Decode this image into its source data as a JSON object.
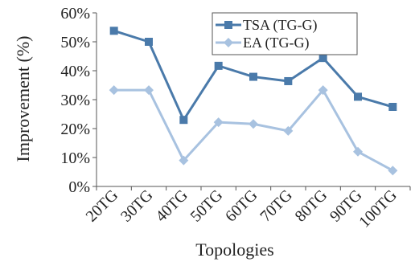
{
  "chart_data": {
    "type": "line",
    "xlabel": "Topologies",
    "ylabel": "Improvement (%)",
    "categories": [
      "20TG",
      "30TG",
      "40TG",
      "50TG",
      "60TG",
      "70TG",
      "80TG",
      "90TG",
      "100TG"
    ],
    "ylim": [
      0,
      60
    ],
    "y_ticks": [
      "0%",
      "10%",
      "20%",
      "30%",
      "40%",
      "50%",
      "60%"
    ],
    "grid": false,
    "legend_position": "top-right",
    "series": [
      {
        "name": "TSA (TG-G)",
        "color": "#4a7aaa",
        "marker": "square",
        "values": [
          53.8,
          50.0,
          23.0,
          41.7,
          37.9,
          36.4,
          44.4,
          31.0,
          27.5
        ]
      },
      {
        "name": "EA (TG-G)",
        "color": "#a8c2e0",
        "marker": "diamond",
        "values": [
          33.3,
          33.3,
          9.0,
          22.2,
          21.6,
          19.2,
          33.3,
          12.0,
          5.5
        ]
      }
    ]
  }
}
